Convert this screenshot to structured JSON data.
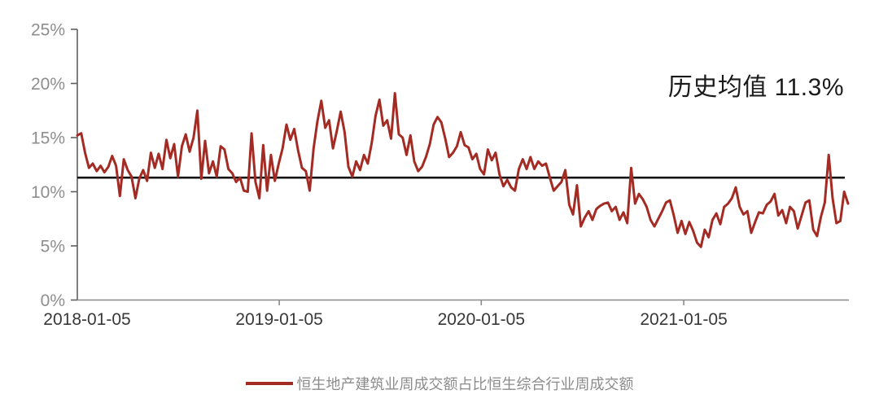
{
  "page": {
    "background": "#ffffff"
  },
  "annotation": {
    "text": "历史均值 11.3%",
    "color": "#1a1a1a"
  },
  "legend": {
    "label": "恒生地产建筑业周成交额占比恒生综合行业周成交额",
    "swatch_color": "#a42b23",
    "text_color": "#8c8c8c"
  },
  "chart_data": {
    "type": "line",
    "title": "",
    "grid": false,
    "legend_position": "bottom-center",
    "x_axis": {
      "start": "2018-01-05",
      "interval": "weekly",
      "tick_labels": [
        "2018-01-05",
        "2019-01-05",
        "2020-01-05",
        "2021-01-05"
      ],
      "tick_week_positions": [
        0,
        52.14,
        104.29,
        156.57
      ],
      "label_color": "#383838",
      "axis_color": "#8a8a8a"
    },
    "y_axis": {
      "tick_labels": [
        "0%",
        "5%",
        "10%",
        "15%",
        "20%",
        "25%"
      ],
      "tick_values": [
        0,
        5,
        10,
        15,
        20,
        25
      ],
      "range": [
        0,
        25
      ],
      "label_color": "#8e8e8e",
      "axis_color": "#5f5f5f"
    },
    "average_line": {
      "label": "历史均值 11.3%",
      "value": 11.3,
      "color": "#141414"
    },
    "series": [
      {
        "name": "恒生地产建筑业周成交额占比恒生综合行业周成交额",
        "color": "#a42b23",
        "unit": "%",
        "values": [
          15.2,
          15.4,
          13.6,
          12.2,
          12.6,
          11.9,
          12.4,
          11.8,
          12.3,
          13.3,
          12.4,
          9.6,
          13.0,
          12.0,
          11.4,
          9.4,
          11.2,
          12.0,
          11.0,
          13.6,
          12.2,
          13.5,
          12.1,
          14.8,
          13.1,
          14.4,
          11.4,
          14.2,
          15.3,
          13.7,
          15.0,
          17.5,
          11.2,
          14.7,
          11.7,
          12.8,
          11.4,
          14.2,
          13.9,
          12.1,
          11.7,
          10.9,
          11.3,
          10.1,
          10.0,
          15.4,
          10.9,
          9.4,
          14.3,
          10.1,
          13.4,
          11.0,
          12.6,
          14.0,
          16.2,
          14.8,
          15.8,
          13.8,
          12.2,
          11.9,
          10.1,
          14.0,
          16.5,
          18.4,
          15.9,
          16.6,
          14.0,
          15.6,
          17.4,
          15.5,
          12.3,
          11.4,
          12.8,
          12.0,
          13.4,
          12.6,
          14.5,
          17.0,
          18.5,
          16.1,
          16.6,
          14.9,
          19.1,
          15.3,
          15.0,
          13.4,
          15.2,
          12.8,
          11.9,
          12.3,
          13.2,
          14.4,
          16.2,
          16.9,
          16.4,
          14.9,
          13.2,
          13.6,
          14.2,
          15.5,
          14.3,
          14.1,
          13.0,
          13.5,
          12.1,
          11.6,
          13.9,
          12.9,
          13.6,
          11.6,
          10.5,
          11.1,
          10.4,
          10.1,
          12.1,
          13.0,
          12.1,
          13.2,
          12.1,
          12.8,
          12.4,
          12.6,
          11.3,
          10.1,
          10.5,
          10.9,
          12.0,
          8.8,
          7.9,
          10.6,
          6.8,
          7.6,
          8.2,
          7.4,
          8.4,
          8.7,
          8.9,
          9.0,
          8.2,
          8.6,
          7.4,
          8.1,
          7.1,
          12.2,
          8.9,
          9.8,
          9.3,
          8.6,
          7.4,
          6.8,
          7.5,
          8.2,
          9.0,
          9.2,
          7.8,
          6.2,
          7.3,
          6.1,
          7.2,
          6.4,
          5.3,
          4.9,
          6.5,
          5.8,
          7.4,
          8.0,
          7.0,
          8.6,
          8.9,
          9.4,
          10.4,
          8.6,
          7.9,
          8.2,
          6.2,
          7.2,
          8.1,
          8.0,
          8.8,
          9.1,
          9.8,
          7.8,
          8.3,
          7.1,
          8.6,
          8.2,
          6.6,
          7.8,
          9.0,
          9.2,
          6.5,
          5.9,
          7.7,
          9.0,
          13.4,
          9.4,
          7.1,
          7.3,
          10.0,
          8.9
        ]
      }
    ]
  }
}
